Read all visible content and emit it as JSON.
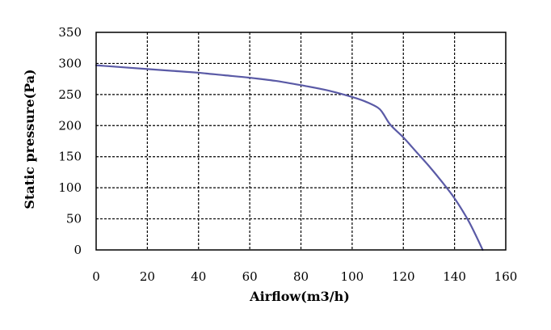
{
  "chart_data": {
    "type": "line",
    "title": "",
    "xlabel": "Airflow(m3/h)",
    "ylabel": "Static pressure(Pa)",
    "xlim": [
      0,
      160
    ],
    "ylim": [
      0,
      350
    ],
    "x_ticks": [
      0,
      20,
      40,
      60,
      80,
      100,
      120,
      140,
      160
    ],
    "y_ticks": [
      0,
      50,
      100,
      150,
      200,
      250,
      300,
      350
    ],
    "grid": true,
    "grid_style": "dashed",
    "legend": "none",
    "series": [
      {
        "color": "#5a5aa6",
        "x": [
          0,
          10,
          20,
          30,
          40,
          50,
          60,
          70,
          80,
          90,
          100,
          105,
          110,
          112,
          115,
          120,
          125,
          130,
          135,
          140,
          145,
          148,
          151
        ],
        "y": [
          297,
          294,
          291,
          288,
          285,
          281,
          277,
          272,
          265,
          257,
          246,
          239,
          229,
          220,
          201,
          181,
          158,
          135,
          110,
          83,
          50,
          26,
          0
        ]
      }
    ]
  },
  "colors": {
    "axis": "#000000",
    "grid": "#000000",
    "background": "#ffffff"
  }
}
